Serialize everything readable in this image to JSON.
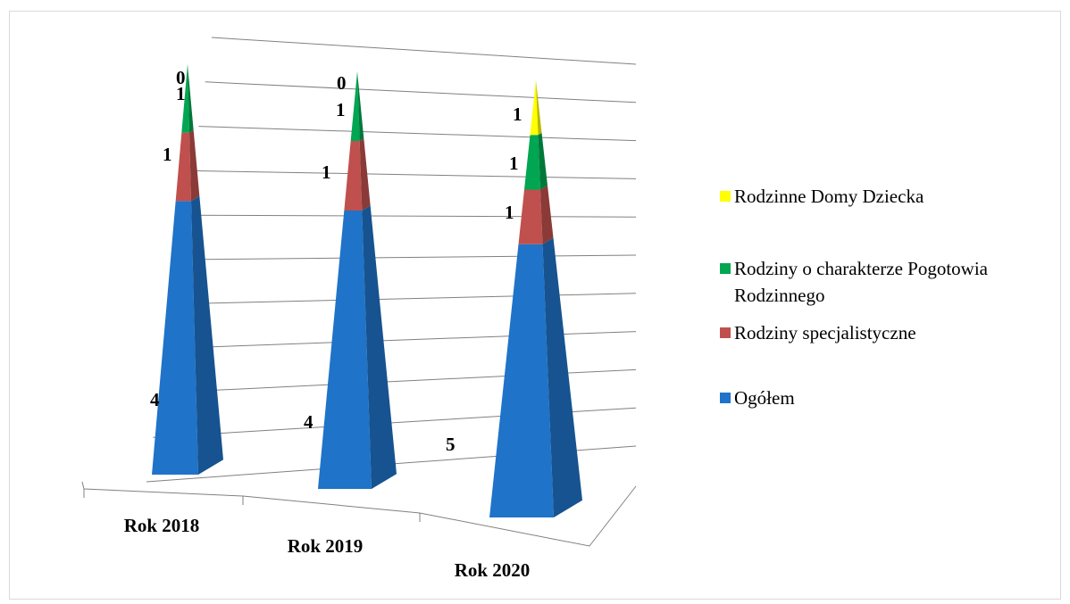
{
  "chart_data": {
    "type": "bar",
    "style": "3d-stacked-pyramid",
    "categories": [
      "Rok 2018",
      "Rok 2019",
      "Rok 2020"
    ],
    "series": [
      {
        "name": "Ogółem",
        "values": [
          4,
          4,
          5
        ],
        "color": "#1f73c8"
      },
      {
        "name": "Rodziny specjalistyczne",
        "values": [
          1,
          1,
          1
        ],
        "color": "#c0504d"
      },
      {
        "name": "Rodziny o charakterze Pogotowia Rodzinnego",
        "values": [
          1,
          1,
          1
        ],
        "color": "#00a651"
      },
      {
        "name": "Rodzinne Domy Dziecka",
        "values": [
          0,
          0,
          1
        ],
        "color": "#ffff00"
      }
    ],
    "data_labels_shown": [
      [
        "4",
        "1",
        "1",
        "0"
      ],
      [
        "4",
        "1",
        "1",
        "0"
      ],
      [
        "5",
        "1",
        "1",
        "1"
      ]
    ],
    "grid": true,
    "legend_position": "right",
    "gridline_count": 10
  }
}
